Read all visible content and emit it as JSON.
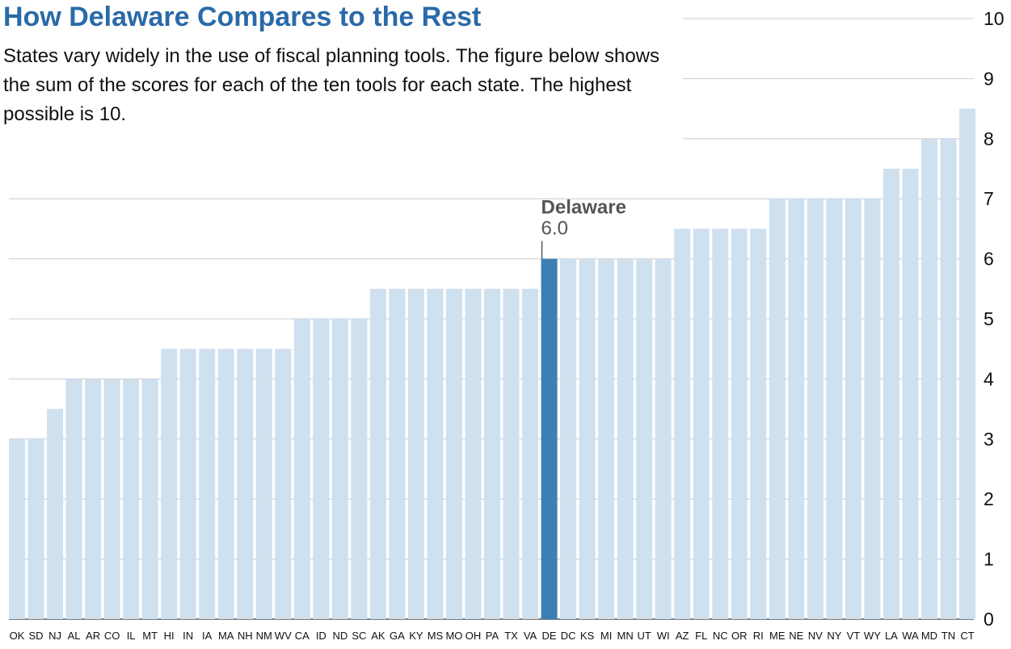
{
  "title": "How Delaware Compares to the Rest",
  "subtitle": "States vary widely in the use of fiscal planning tools.  The figure below shows the sum of the scores for each of the ten tools for each state.  The highest possible is 10.",
  "colors": {
    "bar": "#cfe0ef",
    "highlight": "#3b7fb5",
    "title": "#2a6aa8",
    "grid": "#cccccc"
  },
  "chart_data": {
    "type": "bar",
    "title": "How Delaware Compares to the Rest",
    "xlabel": "",
    "ylabel": "",
    "ylim": [
      0,
      10
    ],
    "yticks": [
      0,
      1,
      2,
      3,
      4,
      5,
      6,
      7,
      8,
      9,
      10
    ],
    "yaxis_position": "right",
    "grid": true,
    "categories": [
      "OK",
      "SD",
      "NJ",
      "AL",
      "AR",
      "CO",
      "IL",
      "MT",
      "HI",
      "IN",
      "IA",
      "MA",
      "NH",
      "NM",
      "WV",
      "CA",
      "ID",
      "ND",
      "SC",
      "AK",
      "GA",
      "KY",
      "MS",
      "MO",
      "OH",
      "PA",
      "TX",
      "VA",
      "DE",
      "DC",
      "KS",
      "MI",
      "MN",
      "UT",
      "WI",
      "AZ",
      "FL",
      "NC",
      "OR",
      "RI",
      "ME",
      "NE",
      "NV",
      "NY",
      "VT",
      "WY",
      "LA",
      "WA",
      "MD",
      "TN",
      "CT"
    ],
    "values": [
      3,
      3,
      3.5,
      4,
      4,
      4,
      4,
      4,
      4.5,
      4.5,
      4.5,
      4.5,
      4.5,
      4.5,
      4.5,
      5,
      5,
      5,
      5,
      5.5,
      5.5,
      5.5,
      5.5,
      5.5,
      5.5,
      5.5,
      5.5,
      5.5,
      6,
      6,
      6,
      6,
      6,
      6,
      6,
      6.5,
      6.5,
      6.5,
      6.5,
      6.5,
      7,
      7,
      7,
      7,
      7,
      7,
      7.5,
      7.5,
      8,
      8,
      8.5
    ],
    "highlight": {
      "category": "DE",
      "label": "Delaware",
      "value_label": "6.0"
    }
  }
}
